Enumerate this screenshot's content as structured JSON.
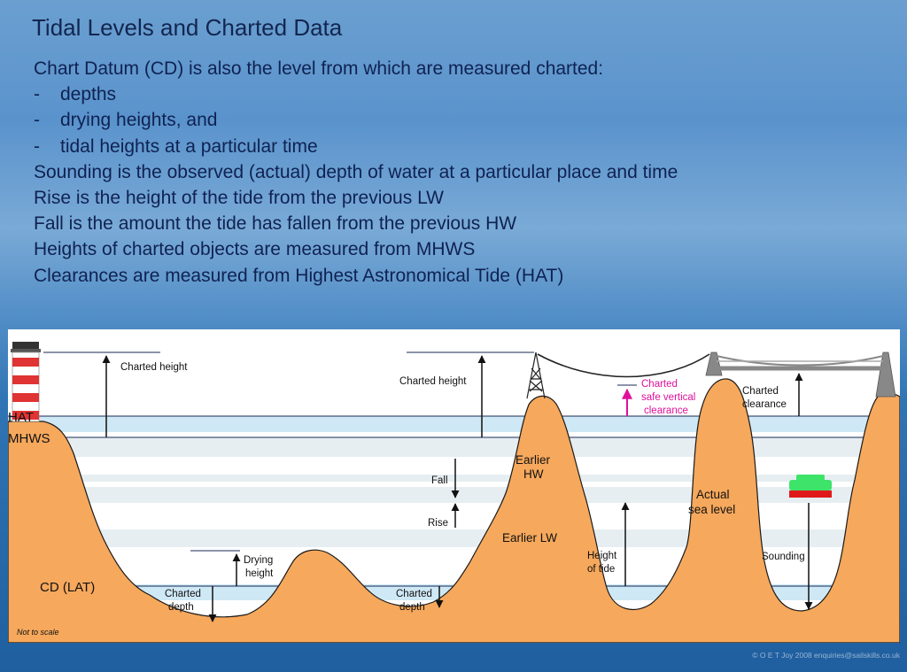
{
  "title": "Tidal Levels and Charted Data",
  "bullets": [
    {
      "dash": "",
      "text": "Chart Datum (CD) is also the level from which are measured charted:"
    },
    {
      "dash": "-",
      "text": "depths"
    },
    {
      "dash": "-",
      "text": "drying heights, and"
    },
    {
      "dash": "-",
      "text": "tidal heights at a particular time"
    },
    {
      "dash": "",
      "text": "Sounding is the observed (actual) depth of water at a particular place and time"
    },
    {
      "dash": "",
      "text": "Rise is the height of the tide from the previous LW"
    },
    {
      "dash": "",
      "text": "Fall is the amount the tide has fallen from the previous HW"
    },
    {
      "dash": "",
      "text": "Heights of charted objects are measured from MHWS"
    },
    {
      "dash": "",
      "text": "Clearances are measured from Highest Astronomical Tide (HAT)"
    }
  ],
  "diagram": {
    "levels": {
      "hat": "HAT",
      "mhws": "MHWS",
      "cd": "CD (LAT)"
    },
    "labels": {
      "charted_height_1": "Charted height",
      "charted_height_2": "Charted height",
      "fall": "Fall",
      "rise": "Rise",
      "earlier_hw_1": "Earlier",
      "earlier_hw_2": "HW",
      "earlier_lw": "Earlier LW",
      "drying_height_1": "Drying",
      "drying_height_2": "height",
      "charted_depth_1a": "Charted",
      "charted_depth_1b": "depth",
      "charted_depth_2a": "Charted",
      "charted_depth_2b": "depth",
      "safe_clear_1": "Charted",
      "safe_clear_2": "safe vertical",
      "safe_clear_3": "clearance",
      "charted_clear_1": "Charted",
      "charted_clear_2": "clearance",
      "actual_sea_1": "Actual",
      "actual_sea_2": "sea level",
      "height_of_tide_1": "Height",
      "height_of_tide_2": "of tide",
      "sounding": "Sounding",
      "not_to_scale": "Not to scale"
    },
    "colors": {
      "land": "#f6a85c",
      "water": "#cfe8f5",
      "line": "#1a2a55",
      "highlight": "#e0109a"
    }
  },
  "copyright": "© O E T Joy 2008 enquiries@sailskills.co.uk"
}
